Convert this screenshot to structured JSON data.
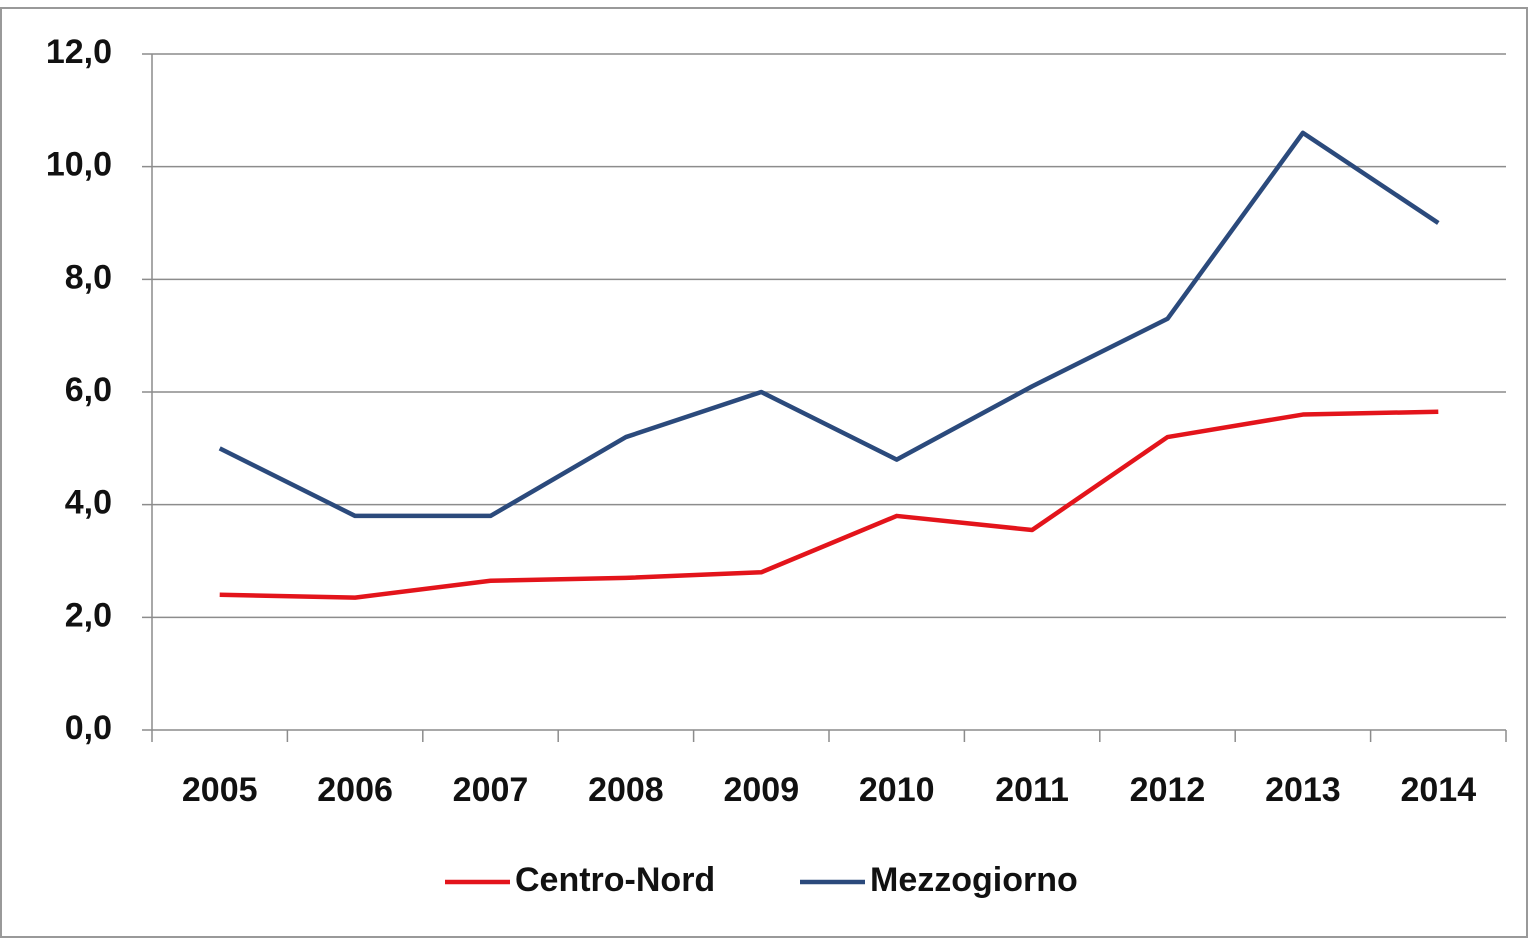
{
  "chart_data": {
    "type": "line",
    "categories": [
      "2005",
      "2006",
      "2007",
      "2008",
      "2009",
      "2010",
      "2011",
      "2012",
      "2013",
      "2014"
    ],
    "series": [
      {
        "name": "Centro-Nord",
        "color": "#e3141b",
        "values": [
          2.4,
          2.35,
          2.65,
          2.7,
          2.8,
          3.8,
          3.55,
          5.2,
          5.6,
          5.65
        ]
      },
      {
        "name": "Mezzogiorno",
        "color": "#2b4a7c",
        "values": [
          5.0,
          3.8,
          3.8,
          5.2,
          6.0,
          4.8,
          6.1,
          7.3,
          10.6,
          9.0
        ]
      }
    ],
    "ylim": [
      0,
      12
    ],
    "yticks": [
      {
        "value": 0,
        "label": "0,0"
      },
      {
        "value": 2,
        "label": "2,0"
      },
      {
        "value": 4,
        "label": "4,0"
      },
      {
        "value": 6,
        "label": "6,0"
      },
      {
        "value": 8,
        "label": "8,0"
      },
      {
        "value": 10,
        "label": "10,0"
      },
      {
        "value": 12,
        "label": "12,0"
      }
    ],
    "grid": true,
    "legend": "bottom"
  }
}
